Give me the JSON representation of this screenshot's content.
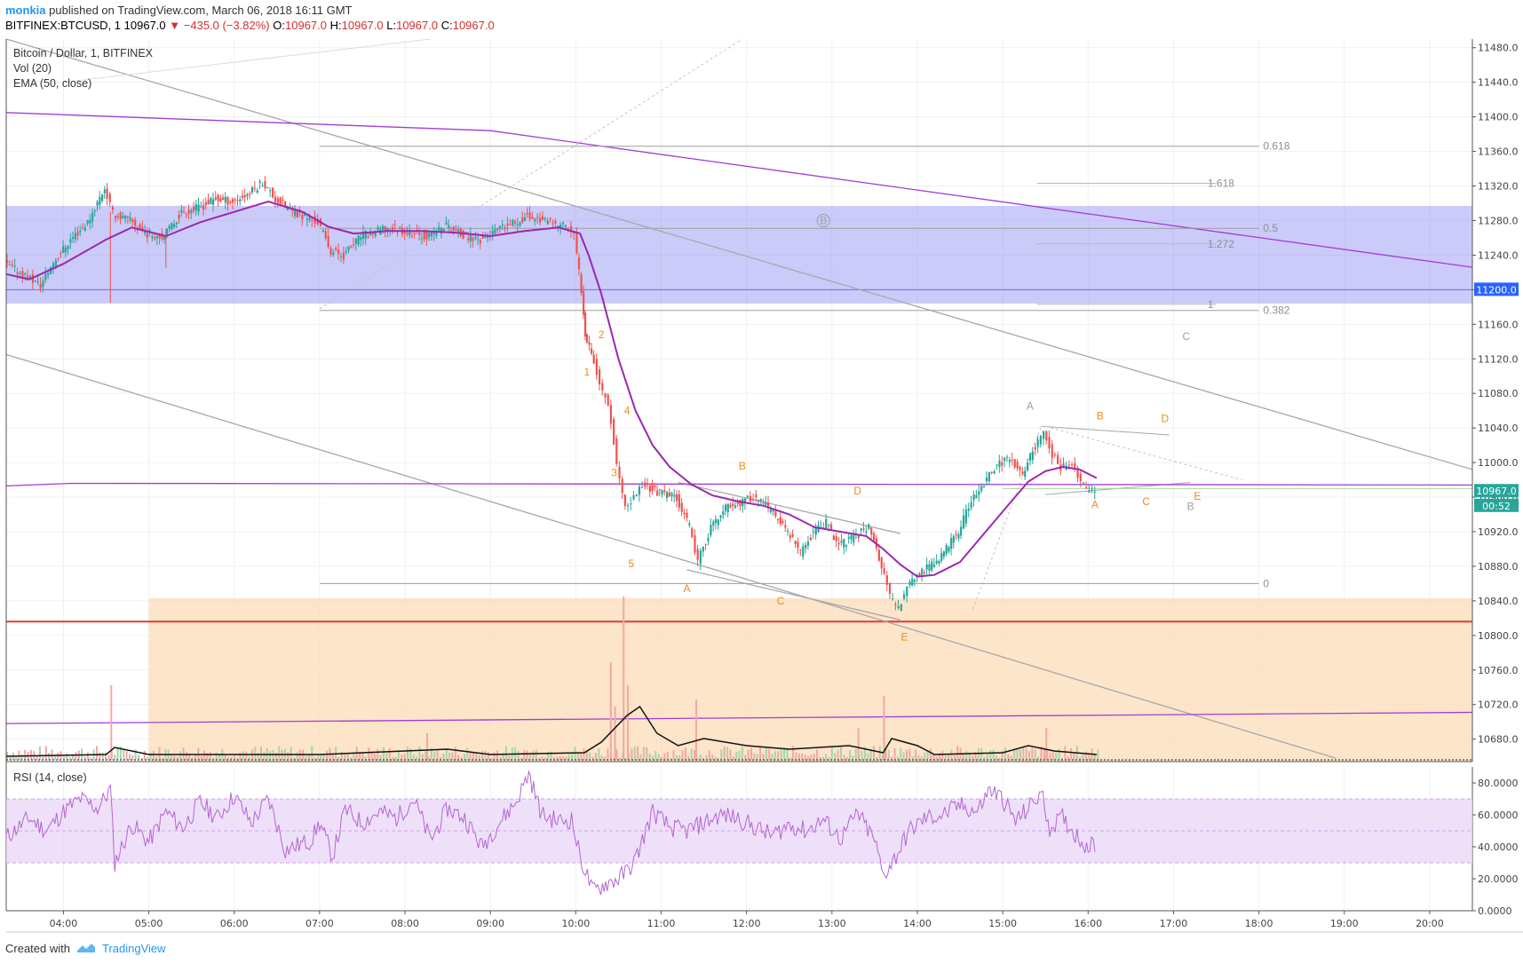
{
  "header": {
    "author": "monkia",
    "published": "published on TradingView.com, March 06, 2018 16:11 GMT",
    "symbol": "BITFINEX:BTCUSD, 1",
    "last": "10967.0",
    "change": "−435.0 (−3.82%)",
    "open_label": "O:",
    "open": "10967.0",
    "high_label": "H:",
    "high": "10967.0",
    "low_label": "L:",
    "low": "10967.0",
    "close_label": "C:",
    "close": "10967.0"
  },
  "legend": {
    "title": "Bitcoin / Dollar, 1, BITFINEX",
    "vol": "Vol (20)",
    "ema": "EMA (50, close)",
    "rsi": "RSI (14, close)"
  },
  "footer": {
    "created": "Created with",
    "brand": "TradingView"
  },
  "colors": {
    "up": "#26a69a",
    "down": "#ef5350",
    "ema": "#9c27b0",
    "zone_blue": "#8c8cf2",
    "zone_orange": "#fbdcb7",
    "support": "#e53935",
    "rsi": "#b366d1",
    "rsi_band": "#e9d5f7",
    "price_tag": "#26a69a",
    "level_tag": "#2962ff"
  },
  "chart_data": [
    {
      "type": "candlestick",
      "title": "Bitcoin / Dollar, 1, BITFINEX",
      "x_ticks": [
        "04:00",
        "05:00",
        "06:00",
        "07:00",
        "08:00",
        "09:00",
        "10:00",
        "11:00",
        "12:00",
        "13:00",
        "14:00",
        "15:00",
        "16:00",
        "17:00",
        "18:00",
        "19:00",
        "20:00"
      ],
      "x_range": [
        3.33,
        20.5
      ],
      "y_ticks": [
        "11480.0",
        "11440.0",
        "11400.0",
        "11360.0",
        "11320.0",
        "11280.0",
        "11240.0",
        "11200.0",
        "11160.0",
        "11120.0",
        "11080.0",
        "11040.0",
        "11000.0",
        "10960.0",
        "10920.0",
        "10880.0",
        "10840.0",
        "10800.0",
        "10760.0",
        "10720.0",
        "10680.0"
      ],
      "ylim": [
        10654,
        11490
      ],
      "price_path": [
        [
          3.33,
          11230
        ],
        [
          3.6,
          11215
        ],
        [
          3.75,
          11205
        ],
        [
          3.9,
          11232
        ],
        [
          4.1,
          11258
        ],
        [
          4.3,
          11278
        ],
        [
          4.5,
          11318
        ],
        [
          4.6,
          11288
        ],
        [
          4.8,
          11280
        ],
        [
          5.0,
          11265
        ],
        [
          5.2,
          11262
        ],
        [
          5.4,
          11290
        ],
        [
          5.6,
          11295
        ],
        [
          5.8,
          11305
        ],
        [
          6.0,
          11302
        ],
        [
          6.2,
          11312
        ],
        [
          6.35,
          11325
        ],
        [
          6.5,
          11305
        ],
        [
          6.7,
          11290
        ],
        [
          6.9,
          11282
        ],
        [
          7.0,
          11278
        ],
        [
          7.15,
          11245
        ],
        [
          7.3,
          11240
        ],
        [
          7.5,
          11262
        ],
        [
          7.7,
          11268
        ],
        [
          7.9,
          11272
        ],
        [
          8.1,
          11265
        ],
        [
          8.3,
          11262
        ],
        [
          8.5,
          11275
        ],
        [
          8.7,
          11262
        ],
        [
          8.9,
          11258
        ],
        [
          9.1,
          11268
        ],
        [
          9.25,
          11275
        ],
        [
          9.45,
          11285
        ],
        [
          9.6,
          11282
        ],
        [
          9.75,
          11275
        ],
        [
          9.9,
          11275
        ],
        [
          10.0,
          11262
        ],
        [
          10.08,
          11200
        ],
        [
          10.12,
          11150
        ],
        [
          10.2,
          11130
        ],
        [
          10.3,
          11090
        ],
        [
          10.4,
          11070
        ],
        [
          10.5,
          11000
        ],
        [
          10.6,
          10945
        ],
        [
          10.7,
          10960
        ],
        [
          10.8,
          10975
        ],
        [
          11.0,
          10965
        ],
        [
          11.2,
          10960
        ],
        [
          11.35,
          10925
        ],
        [
          11.45,
          10885
        ],
        [
          11.6,
          10925
        ],
        [
          11.8,
          10950
        ],
        [
          12.0,
          10955
        ],
        [
          12.1,
          10962
        ],
        [
          12.3,
          10945
        ],
        [
          12.5,
          10920
        ],
        [
          12.65,
          10895
        ],
        [
          12.8,
          10920
        ],
        [
          12.95,
          10930
        ],
        [
          13.1,
          10905
        ],
        [
          13.3,
          10915
        ],
        [
          13.45,
          10928
        ],
        [
          13.6,
          10880
        ],
        [
          13.7,
          10845
        ],
        [
          13.8,
          10830
        ],
        [
          13.9,
          10860
        ],
        [
          14.1,
          10875
        ],
        [
          14.3,
          10892
        ],
        [
          14.5,
          10920
        ],
        [
          14.65,
          10955
        ],
        [
          14.8,
          10975
        ],
        [
          14.95,
          10998
        ],
        [
          15.1,
          11005
        ],
        [
          15.25,
          10985
        ],
        [
          15.4,
          11020
        ],
        [
          15.5,
          11035
        ],
        [
          15.6,
          11010
        ],
        [
          15.7,
          10995
        ],
        [
          15.8,
          11000
        ],
        [
          15.9,
          10985
        ],
        [
          16.0,
          10968
        ],
        [
          16.1,
          10967
        ]
      ],
      "ema_path": [
        [
          3.33,
          11218
        ],
        [
          3.6,
          11212
        ],
        [
          4.0,
          11230
        ],
        [
          4.5,
          11258
        ],
        [
          4.8,
          11272
        ],
        [
          5.2,
          11262
        ],
        [
          5.6,
          11278
        ],
        [
          6.0,
          11290
        ],
        [
          6.4,
          11302
        ],
        [
          6.8,
          11290
        ],
        [
          7.1,
          11273
        ],
        [
          7.4,
          11265
        ],
        [
          7.8,
          11268
        ],
        [
          8.2,
          11268
        ],
        [
          8.6,
          11266
        ],
        [
          9.0,
          11262
        ],
        [
          9.4,
          11268
        ],
        [
          9.8,
          11272
        ],
        [
          10.05,
          11265
        ],
        [
          10.15,
          11240
        ],
        [
          10.3,
          11195
        ],
        [
          10.5,
          11120
        ],
        [
          10.7,
          11060
        ],
        [
          10.9,
          11020
        ],
        [
          11.1,
          10995
        ],
        [
          11.35,
          10975
        ],
        [
          11.6,
          10962
        ],
        [
          11.9,
          10955
        ],
        [
          12.2,
          10950
        ],
        [
          12.5,
          10940
        ],
        [
          12.8,
          10925
        ],
        [
          13.1,
          10920
        ],
        [
          13.4,
          10915
        ],
        [
          13.6,
          10900
        ],
        [
          13.8,
          10882
        ],
        [
          14.0,
          10868
        ],
        [
          14.2,
          10870
        ],
        [
          14.5,
          10885
        ],
        [
          14.8,
          10920
        ],
        [
          15.1,
          10955
        ],
        [
          15.3,
          10978
        ],
        [
          15.5,
          10990
        ],
        [
          15.7,
          10995
        ],
        [
          15.9,
          10992
        ],
        [
          16.1,
          10982
        ]
      ],
      "fib_levels": [
        {
          "label": "0.618",
          "value": 11366
        },
        {
          "label": "0.5",
          "value": 11271
        },
        {
          "label": "0.382",
          "value": 11176
        },
        {
          "label": "0",
          "value": 10860
        }
      ],
      "fib_ext_levels": [
        {
          "label": "1.618",
          "value": 11323
        },
        {
          "label": "1.272",
          "value": 11253
        },
        {
          "label": "1",
          "value": 11183
        }
      ],
      "zones": [
        {
          "name": "resistance",
          "from": 11184,
          "to": 11297
        },
        {
          "name": "support",
          "from": 10654,
          "to": 10843
        }
      ],
      "support_line": 10816,
      "horizontal_line": 10977,
      "wave_labels": [
        {
          "text": "1",
          "x": 10.13,
          "y": 11101,
          "color": "orange"
        },
        {
          "text": "2",
          "x": 10.3,
          "y": 11144,
          "color": "orange"
        },
        {
          "text": "3",
          "x": 10.45,
          "y": 10984,
          "color": "orange"
        },
        {
          "text": "4",
          "x": 10.6,
          "y": 11056,
          "color": "orange"
        },
        {
          "text": "5",
          "x": 10.65,
          "y": 10879,
          "color": "orange"
        },
        {
          "text": "A",
          "x": 11.3,
          "y": 10850,
          "color": "orange"
        },
        {
          "text": "B",
          "x": 11.95,
          "y": 10992,
          "color": "orange"
        },
        {
          "text": "C",
          "x": 12.4,
          "y": 10836,
          "color": "orange"
        },
        {
          "text": "D",
          "x": 13.3,
          "y": 10963,
          "color": "orange"
        },
        {
          "text": "E",
          "x": 13.85,
          "y": 10794,
          "color": "orange"
        },
        {
          "text": "A",
          "x": 15.32,
          "y": 11061,
          "color": "gray"
        },
        {
          "text": "B",
          "x": 16.14,
          "y": 11050,
          "color": "orange"
        },
        {
          "text": "D",
          "x": 16.9,
          "y": 11047,
          "color": "orange"
        },
        {
          "text": "A",
          "x": 16.08,
          "y": 10947,
          "color": "orange"
        },
        {
          "text": "C",
          "x": 16.68,
          "y": 10951,
          "color": "orange"
        },
        {
          "text": "E",
          "x": 17.28,
          "y": 10957,
          "color": "orange"
        },
        {
          "text": "B",
          "x": 17.2,
          "y": 10945,
          "color": "gray"
        },
        {
          "text": "C",
          "x": 17.15,
          "y": 11142,
          "color": "gray"
        },
        {
          "text": "B",
          "x": 12.9,
          "y": 11276,
          "color": "gray"
        }
      ],
      "price_tags": [
        {
          "text": "11200.0",
          "value": 11200,
          "color": "blue"
        },
        {
          "text": "10967.0",
          "value": 10967,
          "color": "green"
        },
        {
          "text": "00:52",
          "value": 10950,
          "color": "green"
        }
      ]
    },
    {
      "type": "bar",
      "title": "Vol (20)",
      "note": "volume bars in lower part of price pane, with 20-period MA (black)",
      "spikes": [
        [
          4.55,
          0.42
        ],
        [
          10.55,
          0.92
        ],
        [
          10.4,
          0.55
        ],
        [
          10.45,
          0.3
        ],
        [
          10.6,
          0.42
        ],
        [
          11.4,
          0.34
        ],
        [
          13.6,
          0.36
        ],
        [
          13.3,
          0.18
        ],
        [
          15.5,
          0.18
        ],
        [
          8.25,
          0.15
        ]
      ],
      "ma_path": [
        [
          3.33,
          0.02
        ],
        [
          4.5,
          0.03
        ],
        [
          4.6,
          0.07
        ],
        [
          5.0,
          0.03
        ],
        [
          7.0,
          0.03
        ],
        [
          8.5,
          0.06
        ],
        [
          9.0,
          0.03
        ],
        [
          10.1,
          0.04
        ],
        [
          10.3,
          0.1
        ],
        [
          10.6,
          0.25
        ],
        [
          10.75,
          0.3
        ],
        [
          10.95,
          0.15
        ],
        [
          11.2,
          0.08
        ],
        [
          11.5,
          0.12
        ],
        [
          12.0,
          0.08
        ],
        [
          12.5,
          0.06
        ],
        [
          13.2,
          0.08
        ],
        [
          13.6,
          0.04
        ],
        [
          13.7,
          0.12
        ],
        [
          14.0,
          0.08
        ],
        [
          14.2,
          0.03
        ],
        [
          15.0,
          0.04
        ],
        [
          15.3,
          0.08
        ],
        [
          15.6,
          0.05
        ],
        [
          16.1,
          0.03
        ]
      ]
    },
    {
      "type": "line",
      "title": "RSI (14, close)",
      "y_ticks": [
        "80.0000",
        "60.0000",
        "40.0000",
        "20.0000",
        "0.0000"
      ],
      "ylim": [
        0,
        90
      ],
      "band": [
        30,
        70
      ],
      "values": [
        [
          3.33,
          46
        ],
        [
          3.6,
          58
        ],
        [
          3.8,
          50
        ],
        [
          4.0,
          62
        ],
        [
          4.2,
          70
        ],
        [
          4.4,
          64
        ],
        [
          4.55,
          76
        ],
        [
          4.6,
          30
        ],
        [
          4.8,
          54
        ],
        [
          5.0,
          43
        ],
        [
          5.2,
          62
        ],
        [
          5.4,
          52
        ],
        [
          5.6,
          68
        ],
        [
          5.8,
          58
        ],
        [
          6.0,
          72
        ],
        [
          6.2,
          55
        ],
        [
          6.4,
          70
        ],
        [
          6.6,
          38
        ],
        [
          6.9,
          44
        ],
        [
          7.0,
          55
        ],
        [
          7.15,
          34
        ],
        [
          7.3,
          63
        ],
        [
          7.5,
          55
        ],
        [
          7.7,
          62
        ],
        [
          7.9,
          58
        ],
        [
          8.1,
          70
        ],
        [
          8.3,
          44
        ],
        [
          8.5,
          64
        ],
        [
          8.7,
          58
        ],
        [
          8.9,
          40
        ],
        [
          9.1,
          55
        ],
        [
          9.3,
          68
        ],
        [
          9.45,
          86
        ],
        [
          9.6,
          60
        ],
        [
          9.8,
          56
        ],
        [
          9.95,
          57
        ],
        [
          10.05,
          34
        ],
        [
          10.2,
          12
        ],
        [
          10.35,
          17
        ],
        [
          10.5,
          20
        ],
        [
          10.6,
          25
        ],
        [
          10.7,
          32
        ],
        [
          10.9,
          62
        ],
        [
          11.1,
          52
        ],
        [
          11.3,
          50
        ],
        [
          11.5,
          55
        ],
        [
          11.7,
          60
        ],
        [
          11.9,
          58
        ],
        [
          12.1,
          52
        ],
        [
          12.3,
          47
        ],
        [
          12.5,
          54
        ],
        [
          12.7,
          50
        ],
        [
          12.9,
          57
        ],
        [
          13.1,
          45
        ],
        [
          13.3,
          61
        ],
        [
          13.5,
          44
        ],
        [
          13.6,
          22
        ],
        [
          13.75,
          34
        ],
        [
          13.9,
          50
        ],
        [
          14.1,
          58
        ],
        [
          14.3,
          60
        ],
        [
          14.5,
          66
        ],
        [
          14.7,
          62
        ],
        [
          14.85,
          76
        ],
        [
          15.0,
          70
        ],
        [
          15.15,
          56
        ],
        [
          15.3,
          64
        ],
        [
          15.45,
          74
        ],
        [
          15.55,
          52
        ],
        [
          15.7,
          58
        ],
        [
          15.85,
          48
        ],
        [
          16.0,
          40
        ],
        [
          16.1,
          42
        ]
      ]
    }
  ]
}
